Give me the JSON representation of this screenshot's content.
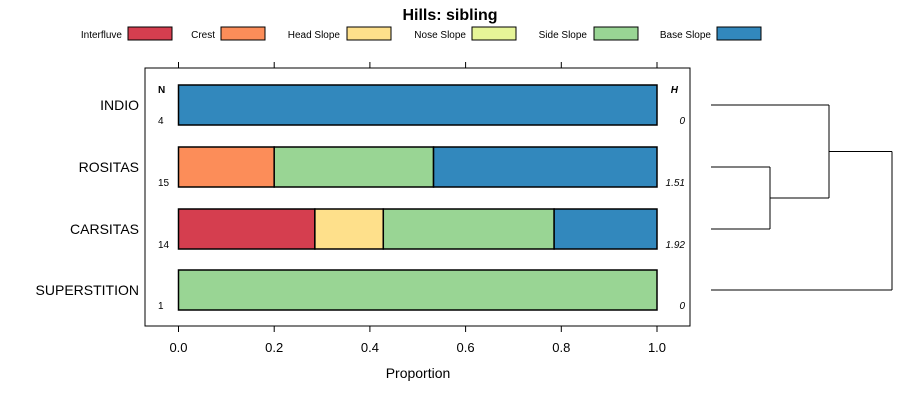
{
  "chart_data": {
    "type": "bar",
    "orientation": "horizontal-stacked",
    "title": "Hills: sibling",
    "xlabel": "Proportion",
    "xlim": [
      -0.07,
      1.07
    ],
    "xticks": [
      0.0,
      0.2,
      0.4,
      0.6,
      0.8,
      1.0
    ],
    "xtick_labels": [
      "0.0",
      "0.2",
      "0.4",
      "0.6",
      "0.8",
      "1.0"
    ],
    "n_header": "N",
    "h_header": "H",
    "categories": [
      "INDIO",
      "ROSITAS",
      "CARSITAS",
      "SUPERSTITION"
    ],
    "n_values": [
      "4",
      "15",
      "14",
      "1"
    ],
    "h_values": [
      "0",
      "1.51",
      "1.92",
      "0"
    ],
    "series": [
      {
        "name": "Interfluve",
        "color": "#D53E4F",
        "values": [
          0,
          0,
          0.285,
          0
        ]
      },
      {
        "name": "Crest",
        "color": "#FC8D59",
        "values": [
          0,
          0.2,
          0,
          0
        ]
      },
      {
        "name": "Head Slope",
        "color": "#FEE08B",
        "values": [
          0,
          0,
          0.143,
          0
        ]
      },
      {
        "name": "Nose Slope",
        "color": "#E6F598",
        "values": [
          0,
          0,
          0,
          0
        ]
      },
      {
        "name": "Side Slope",
        "color": "#99D594",
        "values": [
          0,
          0.333,
          0.357,
          1.0
        ]
      },
      {
        "name": "Base Slope",
        "color": "#3288BD",
        "values": [
          1.0,
          0.467,
          0.215,
          0
        ]
      }
    ],
    "dendrogram": {
      "merges": [
        {
          "left": "ROSITAS",
          "right": "CARSITAS"
        },
        {
          "left": "INDIO",
          "right": [
            "ROSITAS",
            "CARSITAS"
          ]
        },
        {
          "left": [
            "INDIO",
            "ROSITAS",
            "CARSITAS"
          ],
          "right": "SUPERSTITION"
        }
      ]
    }
  }
}
